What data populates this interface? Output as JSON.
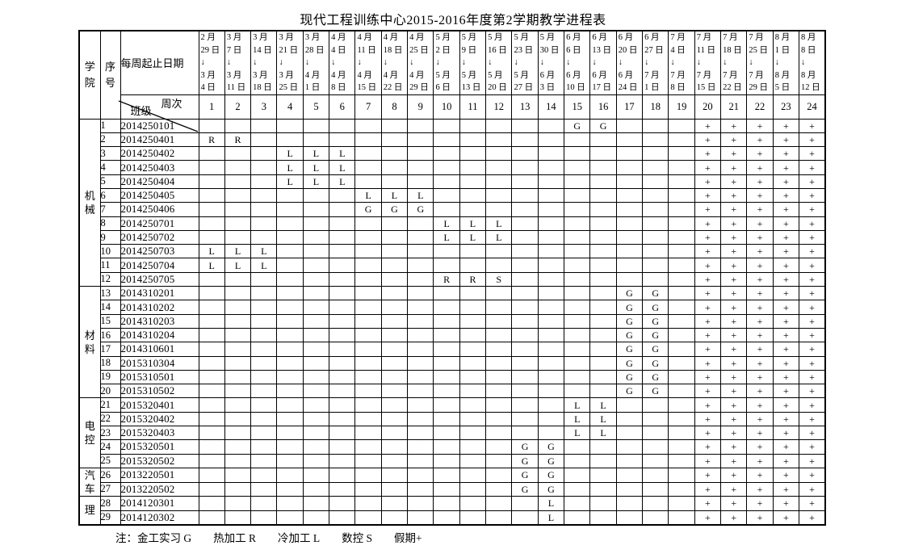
{
  "title": "现代工程训练中心2015-2016年度第2学期教学进程表",
  "header": {
    "college_label": "学院",
    "seq_label": "序号",
    "date_range_label": "每周起止日期",
    "week_label": "周次",
    "class_label": "班级",
    "weeks": [
      {
        "num": "1",
        "lines": [
          "2 月",
          "29 日",
          "↓",
          "3 月",
          "4 日"
        ]
      },
      {
        "num": "2",
        "lines": [
          "3 月",
          "7 日",
          "↓",
          "3 月",
          "11 日"
        ]
      },
      {
        "num": "3",
        "lines": [
          "3 月",
          "14 日",
          "↓",
          "3 月",
          "18 日"
        ]
      },
      {
        "num": "4",
        "lines": [
          "3 月",
          "21 日",
          "↓",
          "3 月",
          "25 日"
        ]
      },
      {
        "num": "5",
        "lines": [
          "3 月",
          "28 日",
          "↓",
          "4 月",
          "1 日"
        ]
      },
      {
        "num": "6",
        "lines": [
          "4 月",
          "4 日",
          "↓",
          "4 月",
          "8 日"
        ]
      },
      {
        "num": "7",
        "lines": [
          "4 月",
          "11 日",
          "↓",
          "4 月",
          "15 日"
        ]
      },
      {
        "num": "8",
        "lines": [
          "4 月",
          "18 日",
          "↓",
          "4 月",
          "22 日"
        ]
      },
      {
        "num": "9",
        "lines": [
          "4 月",
          "25 日",
          "↓",
          "4 月",
          "29 日"
        ]
      },
      {
        "num": "10",
        "lines": [
          "5 月",
          "2 日",
          "↓",
          "5 月",
          "6 日"
        ]
      },
      {
        "num": "11",
        "lines": [
          "5 月",
          "9 日",
          "↓",
          "5 月",
          "13 日"
        ]
      },
      {
        "num": "12",
        "lines": [
          "5 月",
          "16 日",
          "↓",
          "5 月",
          "20 日"
        ]
      },
      {
        "num": "13",
        "lines": [
          "5 月",
          "23 日",
          "↓",
          "5 月",
          "27 日"
        ]
      },
      {
        "num": "14",
        "lines": [
          "5 月",
          "30 日",
          "↓",
          "6 月",
          "3 日"
        ]
      },
      {
        "num": "15",
        "lines": [
          "6 月",
          "6 日",
          "↓",
          "6 月",
          "10 日"
        ]
      },
      {
        "num": "16",
        "lines": [
          "6 月",
          "13 日",
          "↓",
          "6 月",
          "17 日"
        ]
      },
      {
        "num": "17",
        "lines": [
          "6 月",
          "20 日",
          "↓",
          "6 月",
          "24 日"
        ]
      },
      {
        "num": "18",
        "lines": [
          "6 月",
          "27 日",
          "↓",
          "7 月",
          "1 日"
        ]
      },
      {
        "num": "19",
        "lines": [
          "7 月",
          "4 日",
          "↓",
          "7 月",
          "8 日"
        ]
      },
      {
        "num": "20",
        "lines": [
          "7 月",
          "11 日",
          "↓",
          "7 月",
          "15 日"
        ]
      },
      {
        "num": "21",
        "lines": [
          "7 月",
          "18 日",
          "↓",
          "7 月",
          "22 日"
        ]
      },
      {
        "num": "22",
        "lines": [
          "7 月",
          "25 日",
          "↓",
          "7 月",
          "29 日"
        ]
      },
      {
        "num": "23",
        "lines": [
          "8 月",
          "1 日",
          "↓",
          "8 月",
          "5 日"
        ]
      },
      {
        "num": "24",
        "lines": [
          "8 月",
          "8 日",
          "↓",
          "8 月",
          "12 日"
        ]
      }
    ]
  },
  "college_groups": [
    {
      "name": "机械",
      "span": 12
    },
    {
      "name": "材料",
      "span": 8
    },
    {
      "name": "电控",
      "span": 5
    },
    {
      "name": "汽车",
      "span": 2
    },
    {
      "name": "理",
      "span": 2
    }
  ],
  "rows": [
    {
      "seq": "1",
      "class_id": "2014250101",
      "marks": {
        "15": "G",
        "16": "G",
        "20": "+",
        "21": "+",
        "22": "+",
        "23": "+",
        "24": "+"
      }
    },
    {
      "seq": "2",
      "class_id": "2014250401",
      "marks": {
        "1": "R",
        "2": "R",
        "20": "+",
        "21": "+",
        "22": "+",
        "23": "+",
        "24": "+"
      }
    },
    {
      "seq": "3",
      "class_id": "2014250402",
      "marks": {
        "4": "L",
        "5": "L",
        "6": "L",
        "20": "+",
        "21": "+",
        "22": "+",
        "23": "+",
        "24": "+"
      }
    },
    {
      "seq": "4",
      "class_id": "2014250403",
      "marks": {
        "4": "L",
        "5": "L",
        "6": "L",
        "20": "+",
        "21": "+",
        "22": "+",
        "23": "+",
        "24": "+"
      }
    },
    {
      "seq": "5",
      "class_id": "2014250404",
      "marks": {
        "4": "L",
        "5": "L",
        "6": "L",
        "20": "+",
        "21": "+",
        "22": "+",
        "23": "+",
        "24": "+"
      }
    },
    {
      "seq": "6",
      "class_id": "2014250405",
      "marks": {
        "7": "L",
        "8": "L",
        "9": "L",
        "20": "+",
        "21": "+",
        "22": "+",
        "23": "+",
        "24": "+"
      }
    },
    {
      "seq": "7",
      "class_id": "2014250406",
      "marks": {
        "7": "G",
        "8": "G",
        "9": "G",
        "20": "+",
        "21": "+",
        "22": "+",
        "23": "+",
        "24": "+"
      }
    },
    {
      "seq": "8",
      "class_id": "2014250701",
      "marks": {
        "10": "L",
        "11": "L",
        "12": "L",
        "20": "+",
        "21": "+",
        "22": "+",
        "23": "+",
        "24": "+"
      }
    },
    {
      "seq": "9",
      "class_id": "2014250702",
      "marks": {
        "10": "L",
        "11": "L",
        "12": "L",
        "20": "+",
        "21": "+",
        "22": "+",
        "23": "+",
        "24": "+"
      }
    },
    {
      "seq": "10",
      "class_id": "2014250703",
      "marks": {
        "1": "L",
        "2": "L",
        "3": "L",
        "20": "+",
        "21": "+",
        "22": "+",
        "23": "+",
        "24": "+"
      }
    },
    {
      "seq": "11",
      "class_id": "2014250704",
      "marks": {
        "1": "L",
        "2": "L",
        "3": "L",
        "20": "+",
        "21": "+",
        "22": "+",
        "23": "+",
        "24": "+"
      }
    },
    {
      "seq": "12",
      "class_id": "2014250705",
      "marks": {
        "10": "R",
        "11": "R",
        "12": "S",
        "20": "+",
        "21": "+",
        "22": "+",
        "23": "+",
        "24": "+"
      }
    },
    {
      "seq": "13",
      "class_id": "2014310201",
      "marks": {
        "17": "G",
        "18": "G",
        "20": "+",
        "21": "+",
        "22": "+",
        "23": "+",
        "24": "+"
      }
    },
    {
      "seq": "14",
      "class_id": "2014310202",
      "marks": {
        "17": "G",
        "18": "G",
        "20": "+",
        "21": "+",
        "22": "+",
        "23": "+",
        "24": "+"
      }
    },
    {
      "seq": "15",
      "class_id": "2014310203",
      "marks": {
        "17": "G",
        "18": "G",
        "20": "+",
        "21": "+",
        "22": "+",
        "23": "+",
        "24": "+"
      }
    },
    {
      "seq": "16",
      "class_id": "2014310204",
      "marks": {
        "17": "G",
        "18": "G",
        "20": "+",
        "21": "+",
        "22": "+",
        "23": "+",
        "24": "+"
      }
    },
    {
      "seq": "17",
      "class_id": "2014310601",
      "marks": {
        "17": "G",
        "18": "G",
        "20": "+",
        "21": "+",
        "22": "+",
        "23": "+",
        "24": "+"
      }
    },
    {
      "seq": "18",
      "class_id": "2015310304",
      "marks": {
        "17": "G",
        "18": "G",
        "20": "+",
        "21": "+",
        "22": "+",
        "23": "+",
        "24": "+"
      }
    },
    {
      "seq": "19",
      "class_id": "2015310501",
      "marks": {
        "17": "G",
        "18": "G",
        "20": "+",
        "21": "+",
        "22": "+",
        "23": "+",
        "24": "+"
      }
    },
    {
      "seq": "20",
      "class_id": "2015310502",
      "marks": {
        "17": "G",
        "18": "G",
        "20": "+",
        "21": "+",
        "22": "+",
        "23": "+",
        "24": "+"
      }
    },
    {
      "seq": "21",
      "class_id": "2015320401",
      "marks": {
        "15": "L",
        "16": "L",
        "20": "+",
        "21": "+",
        "22": "+",
        "23": "+",
        "24": "+"
      }
    },
    {
      "seq": "22",
      "class_id": "2015320402",
      "marks": {
        "15": "L",
        "16": "L",
        "20": "+",
        "21": "+",
        "22": "+",
        "23": "+",
        "24": "+"
      }
    },
    {
      "seq": "23",
      "class_id": "2015320403",
      "marks": {
        "15": "L",
        "16": "L",
        "20": "+",
        "21": "+",
        "22": "+",
        "23": "+",
        "24": "+"
      }
    },
    {
      "seq": "24",
      "class_id": "2015320501",
      "marks": {
        "13": "G",
        "14": "G",
        "20": "+",
        "21": "+",
        "22": "+",
        "23": "+",
        "24": "+"
      }
    },
    {
      "seq": "25",
      "class_id": "2015320502",
      "marks": {
        "13": "G",
        "14": "G",
        "20": "+",
        "21": "+",
        "22": "+",
        "23": "+",
        "24": "+"
      }
    },
    {
      "seq": "26",
      "class_id": "2013220501",
      "marks": {
        "13": "G",
        "14": "G",
        "20": "+",
        "21": "+",
        "22": "+",
        "23": "+",
        "24": "+"
      }
    },
    {
      "seq": "27",
      "class_id": "2013220502",
      "marks": {
        "13": "G",
        "14": "G",
        "20": "+",
        "21": "+",
        "22": "+",
        "23": "+",
        "24": "+"
      }
    },
    {
      "seq": "28",
      "class_id": "2014120301",
      "marks": {
        "14": "L",
        "20": "+",
        "21": "+",
        "22": "+",
        "23": "+",
        "24": "+"
      }
    },
    {
      "seq": "29",
      "class_id": "2014120302",
      "marks": {
        "14": "L",
        "20": "+",
        "21": "+",
        "22": "+",
        "23": "+",
        "24": "+"
      }
    }
  ],
  "footer": {
    "prefix": "注：",
    "legend": [
      "金工实习 G",
      "热加工 R",
      "冷加工 L",
      "数控 S",
      "假期+"
    ]
  }
}
